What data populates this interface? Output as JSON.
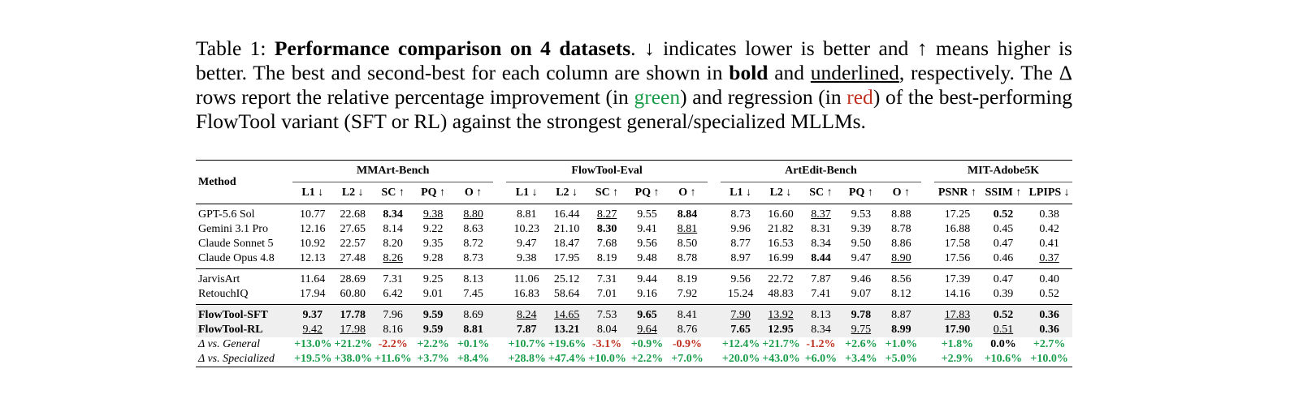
{
  "caption": [
    {
      "text": "Table 1: "
    },
    {
      "text": "Performance comparison on 4 datasets",
      "style": "bold"
    },
    {
      "text": ". ↓ indicates lower is better and ↑ means higher is better. The best and second-best for each column are shown in "
    },
    {
      "text": "bold",
      "style": "bold"
    },
    {
      "text": " and "
    },
    {
      "text": "underlined",
      "style": "underline"
    },
    {
      "text": ", respectively. The Δ rows report the relative percentage improvement (in "
    },
    {
      "text": "green",
      "style": "green"
    },
    {
      "text": ") and regression (in "
    },
    {
      "text": "red",
      "style": "red"
    },
    {
      "text": ") of the best-performing FlowTool variant (SFT or RL) against the strongest general/specialized MLLMs."
    }
  ],
  "table": {
    "method_header": "Method",
    "groups": [
      {
        "name": "MMArt-Bench",
        "columns": [
          "L1 ↓",
          "L2 ↓",
          "SC ↑",
          "PQ ↑",
          "O ↑"
        ]
      },
      {
        "name": "FlowTool-Eval",
        "columns": [
          "L1 ↓",
          "L2 ↓",
          "SC ↑",
          "PQ ↑",
          "O ↑"
        ]
      },
      {
        "name": "ArtEdit-Bench",
        "columns": [
          "L1 ↓",
          "L2 ↓",
          "SC ↑",
          "PQ ↑",
          "O ↑"
        ]
      },
      {
        "name": "MIT-Adobe5K",
        "columns": [
          "PSNR ↑",
          "SSIM ↑",
          "LPIPS ↓"
        ]
      }
    ],
    "sections": [
      [
        {
          "method": "GPT-5.6 Sol",
          "values": [
            "10.77",
            "22.68",
            "8.34",
            "9.38",
            "8.80",
            "8.81",
            "16.44",
            "8.27",
            "9.55",
            "8.84",
            "8.73",
            "16.60",
            "8.37",
            "9.53",
            "8.88",
            "17.25",
            "0.52",
            "0.38"
          ],
          "bold": [
            2,
            9,
            16
          ],
          "underline": [
            3,
            4,
            7,
            12
          ]
        },
        {
          "method": "Gemini 3.1 Pro",
          "values": [
            "12.16",
            "27.65",
            "8.14",
            "9.22",
            "8.63",
            "10.23",
            "21.10",
            "8.30",
            "9.41",
            "8.81",
            "9.96",
            "21.82",
            "8.31",
            "9.39",
            "8.78",
            "16.88",
            "0.45",
            "0.42"
          ],
          "bold": [
            7
          ],
          "underline": [
            9
          ]
        },
        {
          "method": "Claude Sonnet 5",
          "values": [
            "10.92",
            "22.57",
            "8.20",
            "9.35",
            "8.72",
            "9.47",
            "18.47",
            "7.68",
            "9.56",
            "8.50",
            "8.77",
            "16.53",
            "8.34",
            "9.50",
            "8.86",
            "17.58",
            "0.47",
            "0.41"
          ]
        },
        {
          "method": "Claude Opus 4.8",
          "values": [
            "12.13",
            "27.48",
            "8.26",
            "9.28",
            "8.73",
            "9.38",
            "17.95",
            "8.19",
            "9.48",
            "8.78",
            "8.97",
            "16.99",
            "8.44",
            "9.47",
            "8.90",
            "17.56",
            "0.46",
            "0.37"
          ],
          "bold": [
            12
          ],
          "underline": [
            2,
            14,
            17
          ]
        }
      ],
      [
        {
          "method": "JarvisArt",
          "values": [
            "11.64",
            "28.69",
            "7.31",
            "9.25",
            "8.13",
            "11.06",
            "25.12",
            "7.31",
            "9.44",
            "8.19",
            "9.56",
            "22.72",
            "7.87",
            "9.46",
            "8.56",
            "17.39",
            "0.47",
            "0.40"
          ]
        },
        {
          "method": "RetouchIQ",
          "values": [
            "17.94",
            "60.80",
            "6.42",
            "9.01",
            "7.45",
            "16.83",
            "58.64",
            "7.01",
            "9.16",
            "7.92",
            "15.24",
            "48.83",
            "7.41",
            "9.07",
            "8.12",
            "14.16",
            "0.39",
            "0.52"
          ]
        }
      ],
      [
        {
          "method": "FlowTool-SFT",
          "label_style": "bold",
          "shaded": true,
          "values": [
            "9.37",
            "17.78",
            "7.96",
            "9.59",
            "8.69",
            "8.24",
            "14.65",
            "7.53",
            "9.65",
            "8.41",
            "7.90",
            "13.92",
            "8.13",
            "9.78",
            "8.87",
            "17.83",
            "0.52",
            "0.36"
          ],
          "bold": [
            0,
            1,
            3,
            8,
            13,
            16,
            17
          ],
          "underline": [
            5,
            6,
            10,
            11,
            15
          ]
        },
        {
          "method": "FlowTool-RL",
          "label_style": "bold",
          "shaded": true,
          "values": [
            "9.42",
            "17.98",
            "8.16",
            "9.59",
            "8.81",
            "7.87",
            "13.21",
            "8.04",
            "9.64",
            "8.76",
            "7.65",
            "12.95",
            "8.34",
            "9.75",
            "8.99",
            "17.90",
            "0.51",
            "0.36"
          ],
          "bold": [
            3,
            4,
            5,
            6,
            10,
            11,
            14,
            15,
            17
          ],
          "underline": [
            0,
            1,
            8,
            13,
            16
          ]
        },
        {
          "method": "Δ vs. General",
          "label_style": "italic",
          "values": [
            "+13.0%",
            "+21.2%",
            "-2.2%",
            "+2.2%",
            "+0.1%",
            "+10.7%",
            "+19.6%",
            "-3.1%",
            "+0.9%",
            "-0.9%",
            "+12.4%",
            "+21.7%",
            "-1.2%",
            "+2.6%",
            "+1.0%",
            "+1.8%",
            "0.0%",
            "+2.7%"
          ],
          "bold": [
            0,
            1,
            2,
            3,
            4,
            5,
            6,
            7,
            8,
            9,
            10,
            11,
            12,
            13,
            14,
            15,
            16,
            17
          ],
          "colors": [
            "#1a9e4b",
            "#1a9e4b",
            "#c0301f",
            "#1a9e4b",
            "#1a9e4b",
            "#1a9e4b",
            "#1a9e4b",
            "#c0301f",
            "#1a9e4b",
            "#c0301f",
            "#1a9e4b",
            "#1a9e4b",
            "#c0301f",
            "#1a9e4b",
            "#1a9e4b",
            "#1a9e4b",
            "#000000",
            "#1a9e4b"
          ]
        },
        {
          "method": "Δ vs. Specialized",
          "label_style": "italic",
          "values": [
            "+19.5%",
            "+38.0%",
            "+11.6%",
            "+3.7%",
            "+8.4%",
            "+28.8%",
            "+47.4%",
            "+10.0%",
            "+2.2%",
            "+7.0%",
            "+20.0%",
            "+43.0%",
            "+6.0%",
            "+3.4%",
            "+5.0%",
            "+2.9%",
            "+10.6%",
            "+10.0%"
          ],
          "bold": [
            0,
            1,
            2,
            3,
            4,
            5,
            6,
            7,
            8,
            9,
            10,
            11,
            12,
            13,
            14,
            15,
            16,
            17
          ],
          "colors": [
            "#1a9e4b",
            "#1a9e4b",
            "#1a9e4b",
            "#1a9e4b",
            "#1a9e4b",
            "#1a9e4b",
            "#1a9e4b",
            "#1a9e4b",
            "#1a9e4b",
            "#1a9e4b",
            "#1a9e4b",
            "#1a9e4b",
            "#1a9e4b",
            "#1a9e4b",
            "#1a9e4b",
            "#1a9e4b",
            "#1a9e4b",
            "#1a9e4b"
          ]
        }
      ]
    ]
  }
}
